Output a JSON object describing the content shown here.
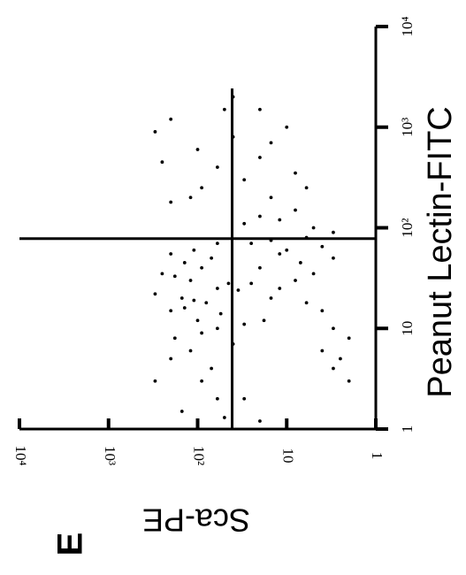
{
  "panel_label": "E",
  "chart_data": {
    "type": "scatter",
    "x_label": "Peanut Lectin-FITC",
    "y_label": "Sca-PE",
    "log_x": true,
    "log_y": true,
    "xlim": [
      1,
      10000
    ],
    "ylim": [
      1,
      10000
    ],
    "xticks": [
      1,
      10,
      {
        "value": 100,
        "label": "10²"
      },
      {
        "value": 1000,
        "label": "10³"
      },
      {
        "value": 10000,
        "label": "10⁴"
      }
    ],
    "yticks": [
      1,
      10,
      {
        "value": 100,
        "label": "10²"
      },
      {
        "value": 1000,
        "label": "10³"
      },
      {
        "value": 10000,
        "label": "10⁴"
      }
    ],
    "quadrant_x": 78,
    "quadrant_y": 41,
    "color": "#000000",
    "x": [
      20,
      30,
      15,
      40,
      25,
      12,
      8,
      35,
      50,
      18,
      10,
      22,
      45,
      6,
      28,
      14,
      60,
      9,
      33,
      16,
      5,
      4,
      3,
      2,
      7,
      11,
      24,
      70,
      55,
      19,
      40,
      60,
      80,
      30,
      20,
      100,
      15,
      10,
      8,
      5,
      50,
      120,
      150,
      70,
      25,
      12,
      35,
      200,
      90,
      45,
      6,
      4,
      3,
      18,
      28,
      65,
      130,
      110,
      75,
      55,
      300,
      500,
      800,
      1000,
      400,
      250,
      600,
      1500,
      2000,
      700,
      350,
      200,
      1200,
      900,
      450,
      180,
      1500,
      250,
      3,
      2,
      1.5,
      1.3,
      1.2
    ],
    "y": [
      150,
      120,
      200,
      90,
      60,
      100,
      180,
      250,
      70,
      80,
      60,
      300,
      140,
      120,
      45,
      55,
      110,
      90,
      180,
      140,
      200,
      70,
      90,
      60,
      40,
      30,
      35,
      60,
      200,
      110,
      20,
      10,
      6,
      8,
      15,
      5,
      4,
      3,
      2,
      2.5,
      3,
      12,
      8,
      25,
      12,
      18,
      5,
      15,
      3,
      7,
      4,
      3,
      2,
      6,
      25,
      4,
      20,
      30,
      15,
      12,
      30,
      20,
      40,
      10,
      60,
      90,
      100,
      50,
      40,
      15,
      8,
      120,
      200,
      300,
      250,
      200,
      20,
      6,
      300,
      30,
      150,
      50,
      20
    ]
  }
}
